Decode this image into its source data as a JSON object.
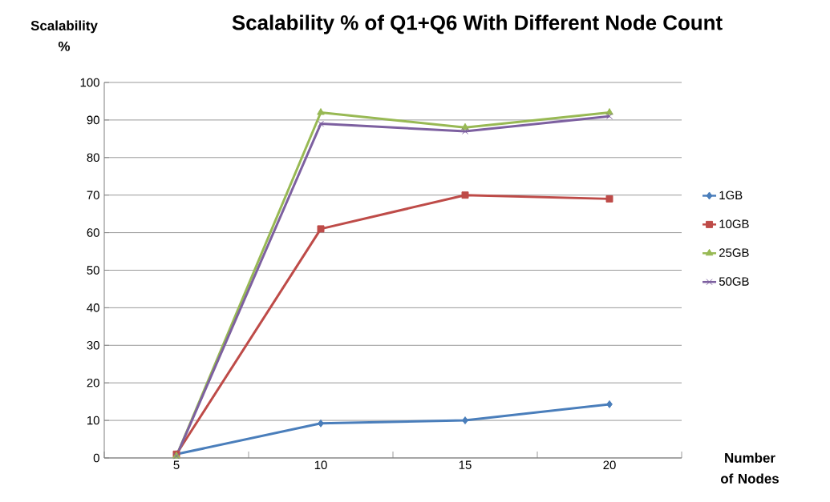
{
  "chart_data": {
    "type": "line",
    "title": "Scalability % of Q1+Q6 With Different Node Count",
    "xlabel": "Number of Nodes",
    "ylabel": "Scalability %",
    "categories": [
      "5",
      "10",
      "15",
      "20"
    ],
    "ylim": [
      0,
      100
    ],
    "yticks": [
      0,
      10,
      20,
      30,
      40,
      50,
      60,
      70,
      80,
      90,
      100
    ],
    "grid": "y",
    "legend": "right",
    "series": [
      {
        "name": "1GB",
        "color": "#4a7ebb",
        "marker": "diamond",
        "values": [
          1,
          9.2,
          10,
          14.3
        ]
      },
      {
        "name": "10GB",
        "color": "#be4b48",
        "marker": "square",
        "values": [
          1,
          61,
          70,
          69
        ]
      },
      {
        "name": "25GB",
        "color": "#98b954",
        "marker": "triangle",
        "values": [
          0.5,
          92,
          88,
          92
        ]
      },
      {
        "name": "50GB",
        "color": "#7d60a0",
        "marker": "cross",
        "values": [
          0.5,
          89,
          87,
          91
        ]
      }
    ]
  }
}
